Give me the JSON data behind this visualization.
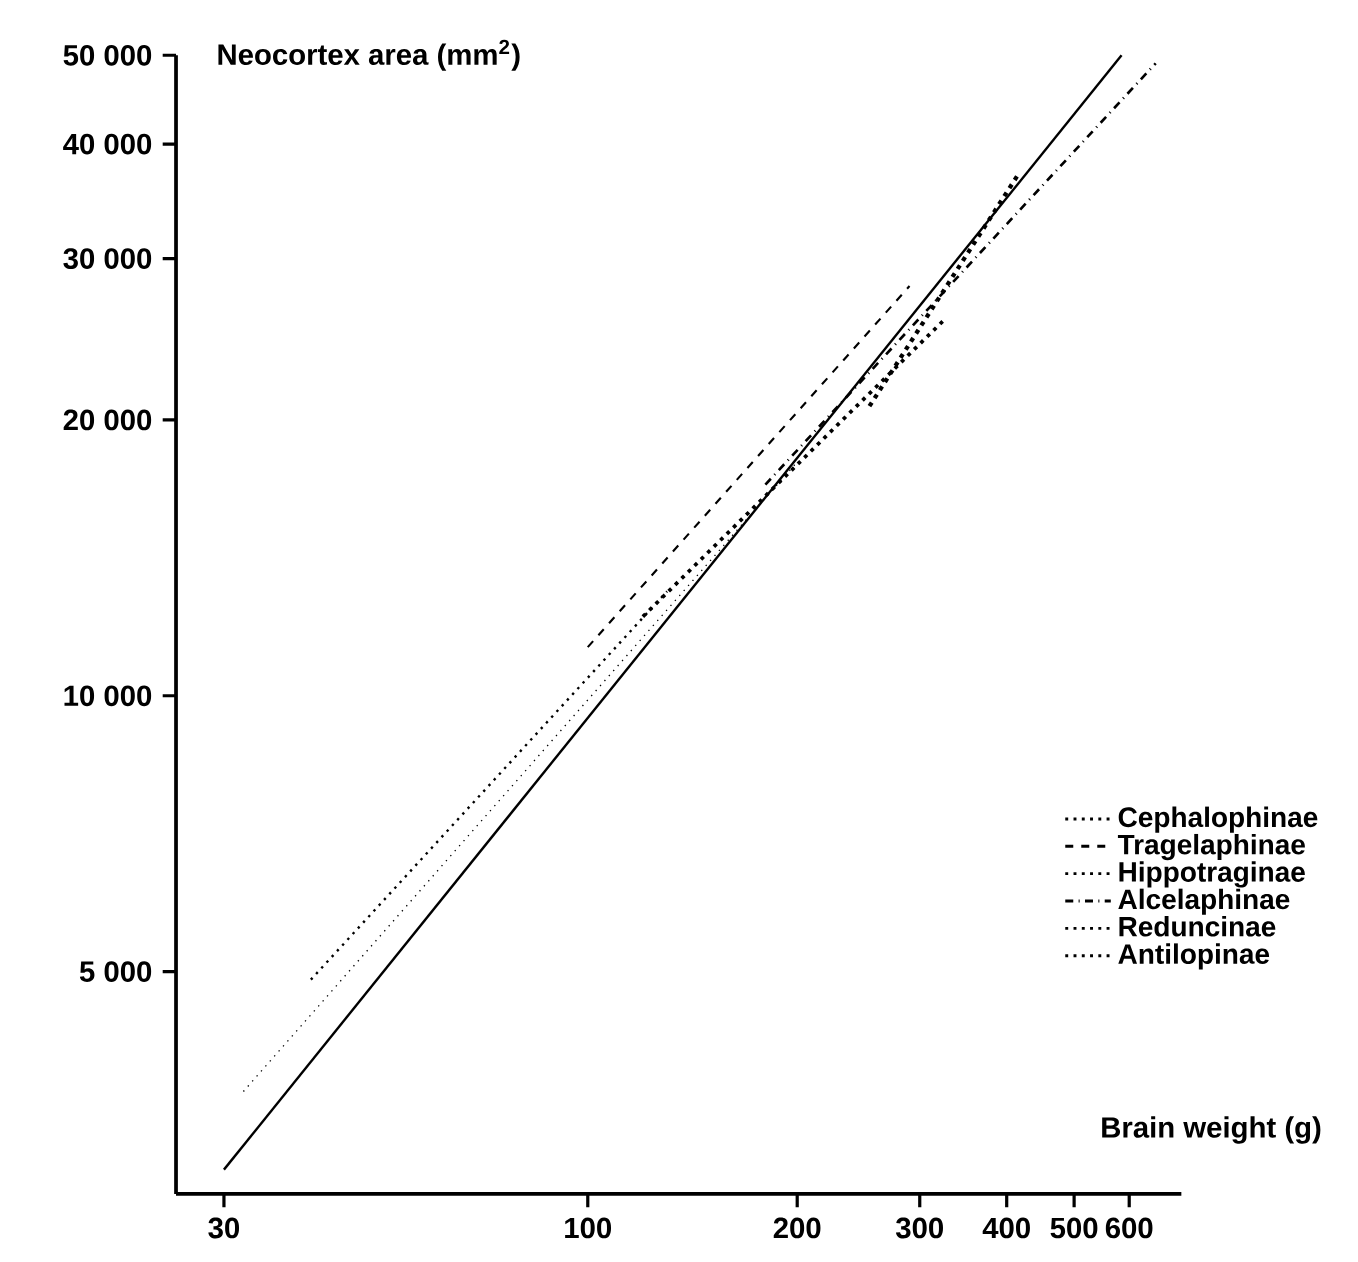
{
  "chart_data": {
    "type": "line",
    "xlabel": "Brain weight (g)",
    "ylabel": "Neocortex area (mm$^{2}$)",
    "log": "xy",
    "grid": false,
    "legend": "right",
    "marker": "none",
    "xlim": [
      25.6,
      713
    ],
    "ylim": [
      2860,
      50000
    ],
    "xticks": [
      30,
      100,
      200,
      300,
      400,
      500,
      600
    ],
    "yticks": [
      {
        "value": 5000,
        "label": "5 000"
      },
      {
        "value": 10000,
        "label": "10 000"
      },
      {
        "value": 20000,
        "label": "20 000"
      },
      {
        "value": 30000,
        "label": "30 000"
      },
      {
        "value": 40000,
        "label": "40 000"
      },
      {
        "value": 50000,
        "label": "50 000"
      }
    ],
    "series": [
      {
        "name": "Cephalophinae",
        "color": "#000000",
        "line_style": "dotted",
        "x": [
          40,
          130
        ],
        "values": [
          4900,
          13000
        ]
      },
      {
        "name": "Tragelaphinae",
        "color": "#000000",
        "line_style": "dashed",
        "x": [
          100,
          290
        ],
        "values": [
          11300,
          28000
        ]
      },
      {
        "name": "Hippotraginae",
        "color": "#000000",
        "line_style": "dotted",
        "x": [
          254,
          415
        ],
        "values": [
          20700,
          37000
        ]
      },
      {
        "name": "Alcelaphinae",
        "color": "#000000",
        "line_style": "dashdotted",
        "x": [
          180,
          655
        ],
        "values": [
          17000,
          49000
        ]
      },
      {
        "name": "Reduncinae",
        "color": "#000000",
        "line_style": "dotted",
        "x": [
          120,
          325
        ],
        "values": [
          12200,
          25700
        ]
      },
      {
        "name": "Antilopinae",
        "color": "#000000",
        "line_style": "dotted",
        "x": [
          32,
          200
        ],
        "values": [
          3700,
          18000
        ]
      },
      {
        "color": "#000000",
        "line_style": "solid",
        "x": [
          30,
          585
        ],
        "values": [
          3040,
          50000
        ]
      }
    ]
  }
}
